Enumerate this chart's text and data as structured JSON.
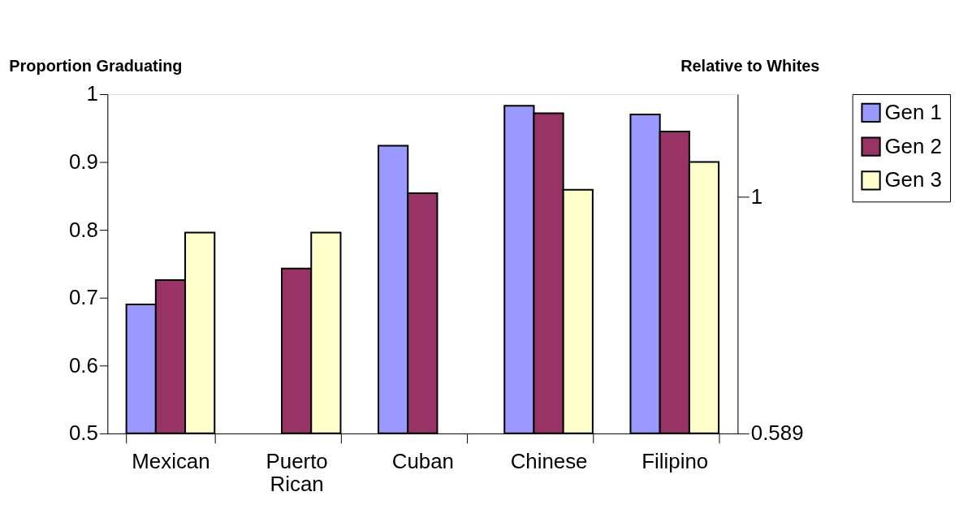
{
  "chart_data": {
    "type": "bar",
    "ylabel": "Proportion Graduating",
    "y2label": "Relative to Whites",
    "categories": [
      "Mexican",
      "Puerto Rican",
      "Cuban",
      "Chinese",
      "Filipino"
    ],
    "series": [
      {
        "name": "Gen 1",
        "color": "#9999ff",
        "values": [
          0.69,
          null,
          0.924,
          0.983,
          0.97
        ]
      },
      {
        "name": "Gen 2",
        "color": "#993366",
        "values": [
          0.726,
          0.743,
          0.854,
          0.972,
          0.945
        ]
      },
      {
        "name": "Gen 3",
        "color": "#ffffcc",
        "values": [
          0.796,
          0.796,
          null,
          0.859,
          0.9
        ]
      }
    ],
    "ylim": [
      0.5,
      1
    ],
    "yticks": [
      0.5,
      0.6,
      0.7,
      0.8,
      0.9,
      1
    ],
    "y2lim": [
      0.589,
      1.178
    ],
    "y2ticks": [
      0.589,
      1
    ],
    "grid": false,
    "legend": "right"
  }
}
